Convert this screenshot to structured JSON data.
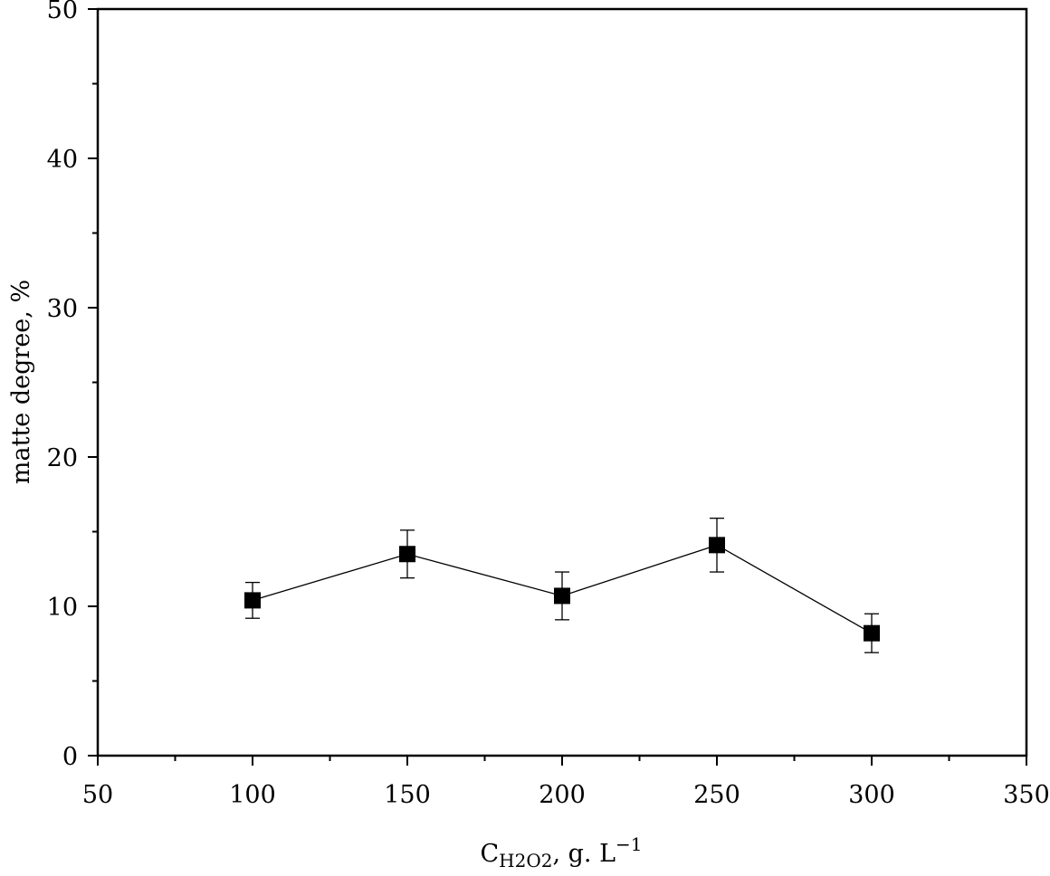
{
  "chart_data": {
    "type": "line",
    "title": "",
    "xlabel_main": "C",
    "xlabel_sub": "H2O2",
    "xlabel_rest": ", g. L",
    "xlabel_sup": "−1",
    "ylabel": "matte degree, %",
    "xlim": [
      50,
      350
    ],
    "ylim": [
      0,
      50
    ],
    "xticks": [
      "50",
      "100",
      "150",
      "200",
      "250",
      "300",
      "350"
    ],
    "yticks": [
      "0",
      "10",
      "20",
      "30",
      "40",
      "50"
    ],
    "grid": false,
    "series": [
      {
        "name": "matte degree",
        "marker": "square",
        "color": "#000000",
        "x": [
          100,
          150,
          200,
          250,
          300
        ],
        "y": [
          10.4,
          13.5,
          10.7,
          14.1,
          8.2
        ],
        "error": [
          1.2,
          1.6,
          1.6,
          1.8,
          1.3
        ]
      }
    ]
  }
}
